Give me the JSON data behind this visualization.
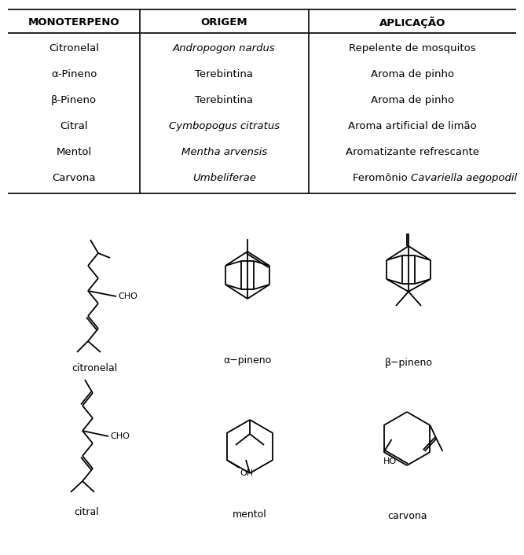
{
  "table_headers": [
    "MONOTERPENO",
    "ORIGEM",
    "APLICAÇÃO"
  ],
  "table_rows": [
    [
      "Citronelal",
      "Andropogon nardus",
      "Repelente de mosquitos"
    ],
    [
      "α-Pineno",
      "Terebintina",
      "Aroma de pinho"
    ],
    [
      "β-Pineno",
      "Terebintina",
      "Aroma de pinho"
    ],
    [
      "Citral",
      "Cymbopogus citratus",
      "Aroma artificial de limão"
    ],
    [
      "Mentol",
      "Mentha arvensis",
      "Aromatizante refrescante"
    ],
    [
      "Carvona",
      "Umbeliferae",
      "Feroмônio Cavariella aegopodil"
    ]
  ],
  "italic_origem": [
    true,
    false,
    false,
    true,
    true,
    true
  ],
  "bg_color": "#ffffff",
  "line_color": "#000000",
  "lw": 1.2
}
